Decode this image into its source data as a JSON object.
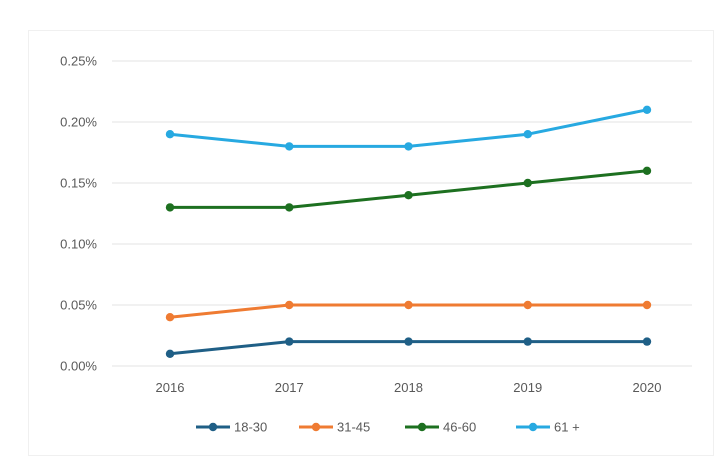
{
  "chart_data": {
    "type": "line",
    "title": "",
    "xlabel": "",
    "ylabel": "",
    "x": [
      "2016",
      "2017",
      "2018",
      "2019",
      "2020"
    ],
    "ylim": [
      0,
      0.25
    ],
    "yticks": [
      {
        "value": 0.0,
        "label": "0.00%"
      },
      {
        "value": 0.05,
        "label": "0.05%"
      },
      {
        "value": 0.1,
        "label": "0.10%"
      },
      {
        "value": 0.15,
        "label": "0.15%"
      },
      {
        "value": 0.2,
        "label": "0.20%"
      },
      {
        "value": 0.25,
        "label": "0.25%"
      }
    ],
    "grid": true,
    "legend_position": "bottom",
    "series": [
      {
        "name": "18-30",
        "color": "#1f5f86",
        "values": [
          0.01,
          0.02,
          0.02,
          0.02,
          0.02
        ]
      },
      {
        "name": "31-45",
        "color": "#ef7b32",
        "values": [
          0.04,
          0.05,
          0.05,
          0.05,
          0.05
        ]
      },
      {
        "name": "46-60",
        "color": "#1d7020",
        "values": [
          0.13,
          0.13,
          0.14,
          0.15,
          0.16
        ]
      },
      {
        "name": "61 +",
        "color": "#27a9e1",
        "values": [
          0.19,
          0.18,
          0.18,
          0.19,
          0.21
        ]
      }
    ]
  }
}
